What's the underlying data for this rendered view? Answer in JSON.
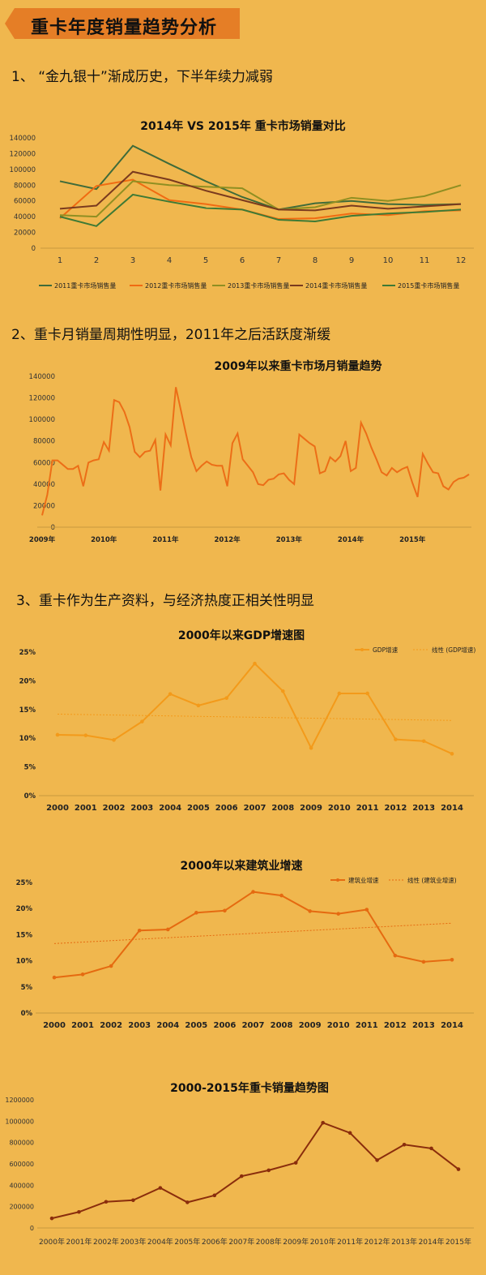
{
  "header": {
    "title": "重卡年度销量趋势分析"
  },
  "sections": [
    {
      "label": "1、 “金九银十”渐成历史，下半年续力减弱"
    },
    {
      "label": "2、重卡月销量周期性明显，2011年之后活跃度渐缓"
    },
    {
      "label": "3、重卡作为生产资料，与经济热度正相关性明显"
    }
  ],
  "colors": {
    "background": "#F0B74E",
    "banner": "#E57E26",
    "s2011": "#3F6B3A",
    "s2012": "#F06B12",
    "s2013": "#8F8F22",
    "s2014": "#7A3A1E",
    "s2015": "#3E7A35",
    "monthly": "#EC6E17",
    "gdp": "#F39A1A",
    "construction": "#E56A10",
    "annual": "#8A2D0C"
  },
  "chart_data": [
    {
      "type": "line",
      "title": "2014年 VS 2015年 重卡市场销量对比",
      "categories": [
        "1",
        "2",
        "3",
        "4",
        "5",
        "6",
        "7",
        "8",
        "9",
        "10",
        "11",
        "12"
      ],
      "ylim": [
        0,
        140000
      ],
      "yticks": [
        "0",
        "20000",
        "40000",
        "60000",
        "80000",
        "100000",
        "120000",
        "140000"
      ],
      "legend_position": "bottom",
      "series": [
        {
          "name": "2011重卡市场销售量",
          "values": [
            85000,
            75000,
            130000,
            107000,
            85000,
            65000,
            49000,
            57000,
            60000,
            56000,
            55000,
            56000
          ]
        },
        {
          "name": "2012重卡市场销售量",
          "values": [
            38000,
            79000,
            87000,
            61000,
            56000,
            49000,
            37000,
            38000,
            44000,
            42000,
            47000,
            48000
          ]
        },
        {
          "name": "2013重卡市场销售量",
          "values": [
            42000,
            40000,
            85000,
            80000,
            78000,
            76000,
            49000,
            52000,
            64000,
            60000,
            66000,
            80000
          ]
        },
        {
          "name": "2014重卡市场销售量",
          "values": [
            50000,
            54000,
            97000,
            87000,
            73000,
            61000,
            49000,
            48000,
            54000,
            50000,
            53000,
            56000
          ]
        },
        {
          "name": "2015重卡市场销售量",
          "values": [
            40000,
            28000,
            68000,
            59000,
            51000,
            49000,
            36000,
            34000,
            41000,
            44000,
            46000,
            49000
          ]
        }
      ]
    },
    {
      "type": "line",
      "title": "2009年以来重卡市场月销量趋势",
      "ylim": [
        0,
        140000
      ],
      "yticks": [
        "0",
        "20000",
        "40000",
        "60000",
        "80000",
        "100000",
        "120000",
        "140000"
      ],
      "xticks": [
        "2009年",
        "2010年",
        "2011年",
        "2012年",
        "2013年",
        "2014年",
        "2015年"
      ],
      "series": [
        {
          "name": "",
          "values": [
            11000,
            30000,
            62000,
            62000,
            58000,
            54000,
            54000,
            57000,
            38000,
            60000,
            62000,
            63000,
            79000,
            71000,
            118000,
            116000,
            107000,
            93000,
            70000,
            65000,
            70000,
            71000,
            81000,
            34000,
            86000,
            76000,
            130000,
            108000,
            86000,
            65000,
            52000,
            57000,
            61000,
            58000,
            57000,
            57000,
            38000,
            78000,
            87000,
            63000,
            57000,
            51000,
            40000,
            39000,
            44000,
            45000,
            49000,
            50000,
            44000,
            40000,
            86000,
            82000,
            78000,
            75000,
            50000,
            52000,
            65000,
            61000,
            66000,
            80000,
            52000,
            55000,
            97000,
            87000,
            74000,
            63000,
            51000,
            48000,
            55000,
            51000,
            54000,
            56000,
            41000,
            28000,
            68000,
            59000,
            51000,
            50000,
            38000,
            35000,
            42000,
            45000,
            46000,
            49000
          ]
        }
      ]
    },
    {
      "type": "line",
      "title": "2000年以来GDP增速图",
      "categories": [
        "2000",
        "2001",
        "2002",
        "2003",
        "2004",
        "2005",
        "2006",
        "2007",
        "2008",
        "2009",
        "2010",
        "2011",
        "2012",
        "2013",
        "2014"
      ],
      "ylim": [
        0,
        25
      ],
      "yticks": [
        "0%",
        "5%",
        "10%",
        "15%",
        "20%",
        "25%"
      ],
      "legend_position": "top-right",
      "series": [
        {
          "name": "GDP增速",
          "values": [
            10.6,
            10.5,
            9.7,
            12.9,
            17.7,
            15.7,
            17.0,
            23.0,
            18.2,
            8.3,
            17.8,
            17.8,
            9.8,
            9.5,
            7.3
          ]
        }
      ],
      "trendline": {
        "name": "线性 (GDP增速)",
        "values": [
          14.2,
          13.1
        ]
      }
    },
    {
      "type": "line",
      "title": "2000年以来建筑业增速",
      "categories": [
        "2000",
        "2001",
        "2002",
        "2003",
        "2004",
        "2005",
        "2006",
        "2007",
        "2008",
        "2009",
        "2010",
        "2011",
        "2012",
        "2013",
        "2014"
      ],
      "ylim": [
        0,
        25
      ],
      "yticks": [
        "0%",
        "5%",
        "10%",
        "15%",
        "20%",
        "25%"
      ],
      "legend_position": "top-right",
      "series": [
        {
          "name": "建筑业增速",
          "values": [
            6.8,
            7.4,
            9.0,
            15.8,
            16.0,
            19.2,
            19.6,
            23.2,
            22.5,
            19.5,
            19.0,
            19.8,
            11.0,
            9.8,
            10.2
          ]
        }
      ],
      "trendline": {
        "name": "线性 (建筑业增速)",
        "values": [
          13.3,
          17.2
        ]
      }
    },
    {
      "type": "line",
      "title": "2000-2015年重卡销量趋势图",
      "categories": [
        "2000年",
        "2001年",
        "2002年",
        "2003年",
        "2004年",
        "2005年",
        "2006年",
        "2007年",
        "2008年",
        "2009年",
        "2010年",
        "2011年",
        "2012年",
        "2013年",
        "2014年",
        "2015年"
      ],
      "ylim": [
        0,
        1200000
      ],
      "yticks": [
        "0",
        "200000",
        "400000",
        "600000",
        "800000",
        "1000000",
        "1200000"
      ],
      "series": [
        {
          "name": "",
          "values": [
            90000,
            150000,
            245000,
            260000,
            375000,
            240000,
            305000,
            485000,
            540000,
            610000,
            985000,
            890000,
            635000,
            780000,
            745000,
            550000
          ]
        }
      ]
    }
  ]
}
